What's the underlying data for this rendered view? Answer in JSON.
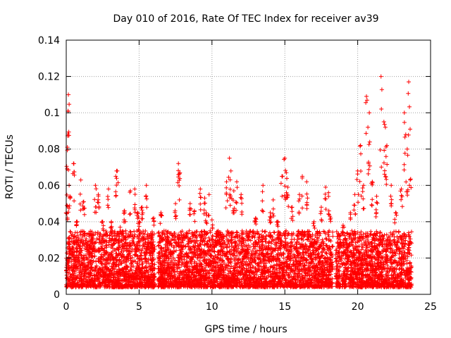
{
  "chart_data": {
    "type": "scatter",
    "title": "Day 010 of 2016, Rate Of TEC Index for receiver av39",
    "xlabel": "GPS time / hours",
    "ylabel": "ROTI / TECUs",
    "xlim": [
      0,
      25
    ],
    "ylim": [
      0,
      0.14
    ],
    "xticks": [
      0,
      5,
      10,
      15,
      20,
      25
    ],
    "xtick_labels": [
      "0",
      "5",
      "10",
      "15",
      "20",
      "25"
    ],
    "yticks": [
      0,
      0.02,
      0.04,
      0.06,
      0.08,
      0.1,
      0.12,
      0.14
    ],
    "ytick_labels": [
      "0",
      "0.02",
      "0.04",
      "0.06",
      "0.08",
      "0.1",
      "0.12",
      "0.14"
    ],
    "grid": true,
    "marker": "+",
    "color": "#ff0000",
    "observed_time_spans_hours": [
      [
        0.0,
        6.1
      ],
      [
        6.3,
        18.3
      ],
      [
        18.5,
        23.7
      ]
    ],
    "series": [
      {
        "name": "ROTI",
        "x": [
          0.05,
          0.08,
          0.12,
          0.15,
          0.2,
          0.25,
          0.5,
          0.7,
          1.0,
          1.2,
          1.6,
          2.0,
          2.2,
          2.5,
          2.9,
          3.1,
          3.4,
          3.5,
          3.7,
          4.0,
          4.4,
          4.7,
          4.9,
          5.0,
          5.2,
          5.5,
          5.9,
          6.0,
          6.5,
          7.0,
          7.5,
          7.7,
          7.8,
          8.5,
          8.8,
          9.2,
          9.5,
          9.6,
          9.8,
          10.0,
          10.5,
          11.0,
          11.2,
          11.3,
          11.5,
          11.7,
          12.0,
          12.5,
          13.0,
          13.5,
          14.0,
          14.2,
          14.5,
          14.8,
          15.0,
          15.1,
          15.2,
          15.5,
          16.0,
          16.2,
          16.5,
          17.0,
          17.5,
          17.8,
          18.0,
          18.1,
          18.8,
          19.0,
          19.5,
          19.8,
          20.0,
          20.2,
          20.4,
          20.6,
          20.7,
          20.8,
          21.0,
          21.3,
          21.6,
          21.8,
          21.9,
          22.0,
          22.3,
          22.6,
          23.0,
          23.2,
          23.3,
          23.4,
          23.5,
          23.6
        ],
        "y": [
          0.049,
          0.081,
          0.101,
          0.11,
          0.06,
          0.054,
          0.072,
          0.04,
          0.063,
          0.051,
          0.025,
          0.06,
          0.055,
          0.04,
          0.058,
          0.04,
          0.065,
          0.068,
          0.037,
          0.046,
          0.057,
          0.058,
          0.045,
          0.04,
          0.048,
          0.06,
          0.03,
          0.042,
          0.045,
          0.028,
          0.05,
          0.072,
          0.067,
          0.05,
          0.046,
          0.058,
          0.053,
          0.045,
          0.055,
          0.041,
          0.03,
          0.062,
          0.075,
          0.068,
          0.057,
          0.062,
          0.055,
          0.032,
          0.042,
          0.06,
          0.045,
          0.052,
          0.04,
          0.065,
          0.075,
          0.067,
          0.059,
          0.048,
          0.055,
          0.065,
          0.062,
          0.04,
          0.048,
          0.059,
          0.056,
          0.043,
          0.03,
          0.038,
          0.045,
          0.055,
          0.068,
          0.082,
          0.06,
          0.109,
          0.092,
          0.1,
          0.062,
          0.054,
          0.12,
          0.095,
          0.092,
          0.082,
          0.06,
          0.045,
          0.058,
          0.1,
          0.088,
          0.08,
          0.117,
          0.091
        ],
        "bulk_band_y": [
          0.004,
          0.035
        ]
      }
    ]
  }
}
